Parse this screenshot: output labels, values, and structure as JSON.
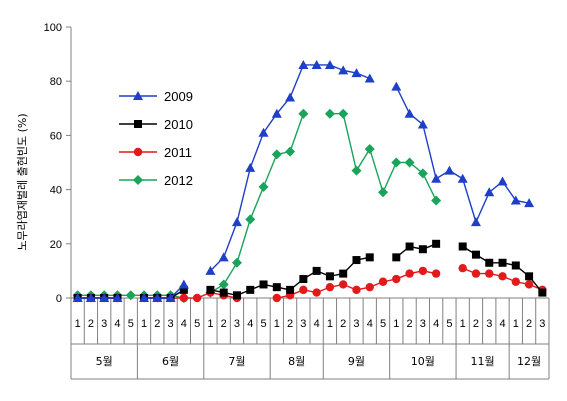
{
  "chart_data": {
    "type": "line",
    "ylabel": "노무라엽재벌레 출현빈도 (%)",
    "ylim": [
      0,
      100
    ],
    "yticks": [
      0,
      20,
      40,
      60,
      80,
      100
    ],
    "grid": false,
    "legend_position": "upper-left inside plot",
    "categories": [
      "1",
      "2",
      "3",
      "4",
      "5",
      "1",
      "2",
      "3",
      "4",
      "5",
      "1",
      "2",
      "3",
      "4",
      "5",
      "1",
      "2",
      "3",
      "4",
      "1",
      "2",
      "3",
      "4",
      "5",
      "1",
      "2",
      "3",
      "4",
      "5",
      "1",
      "2",
      "3",
      "4",
      "1",
      "2",
      "3"
    ],
    "months": [
      {
        "label": "5월",
        "span": 5
      },
      {
        "label": "6월",
        "span": 5
      },
      {
        "label": "7월",
        "span": 5
      },
      {
        "label": "8월",
        "span": 4
      },
      {
        "label": "9월",
        "span": 5
      },
      {
        "label": "10월",
        "span": 5
      },
      {
        "label": "11월",
        "span": 4
      },
      {
        "label": "12월",
        "span": 3
      }
    ],
    "series": [
      {
        "name": "2009",
        "color": "#1f3fc8",
        "marker": "triangle",
        "values": [
          0,
          0,
          0,
          0,
          null,
          0,
          0,
          0,
          5,
          null,
          10,
          15,
          28,
          48,
          61,
          68,
          74,
          86,
          86,
          86,
          84,
          83,
          81,
          null,
          78,
          68,
          64,
          44,
          47,
          44,
          28,
          39,
          43,
          36,
          35,
          null
        ]
      },
      {
        "name": "2010",
        "color": "#000000",
        "marker": "square",
        "values": [
          0,
          0,
          0,
          0,
          null,
          0,
          0,
          0,
          3,
          null,
          3,
          2,
          1,
          3,
          5,
          4,
          3,
          7,
          10,
          8,
          9,
          14,
          15,
          null,
          15,
          19,
          18,
          20,
          null,
          19,
          16,
          13,
          13,
          12,
          8,
          2
        ]
      },
      {
        "name": "2011",
        "color": "#e31a1c",
        "marker": "circle",
        "values": [
          0,
          0,
          0,
          0,
          null,
          0,
          0,
          0,
          0,
          0,
          2,
          1,
          0,
          null,
          null,
          0,
          1,
          3,
          2,
          4,
          5,
          3,
          4,
          6,
          7,
          9,
          10,
          9,
          null,
          11,
          9,
          9,
          8,
          6,
          5,
          3
        ]
      },
      {
        "name": "2012",
        "color": "#1aa35a",
        "marker": "diamond",
        "values": [
          1,
          1,
          1,
          1,
          1,
          1,
          1,
          1,
          0,
          null,
          2,
          5,
          13,
          29,
          41,
          53,
          54,
          68,
          null,
          68,
          68,
          47,
          55,
          39,
          50,
          50,
          46,
          36,
          null,
          null,
          null,
          null,
          null,
          null,
          null,
          null
        ]
      }
    ]
  }
}
